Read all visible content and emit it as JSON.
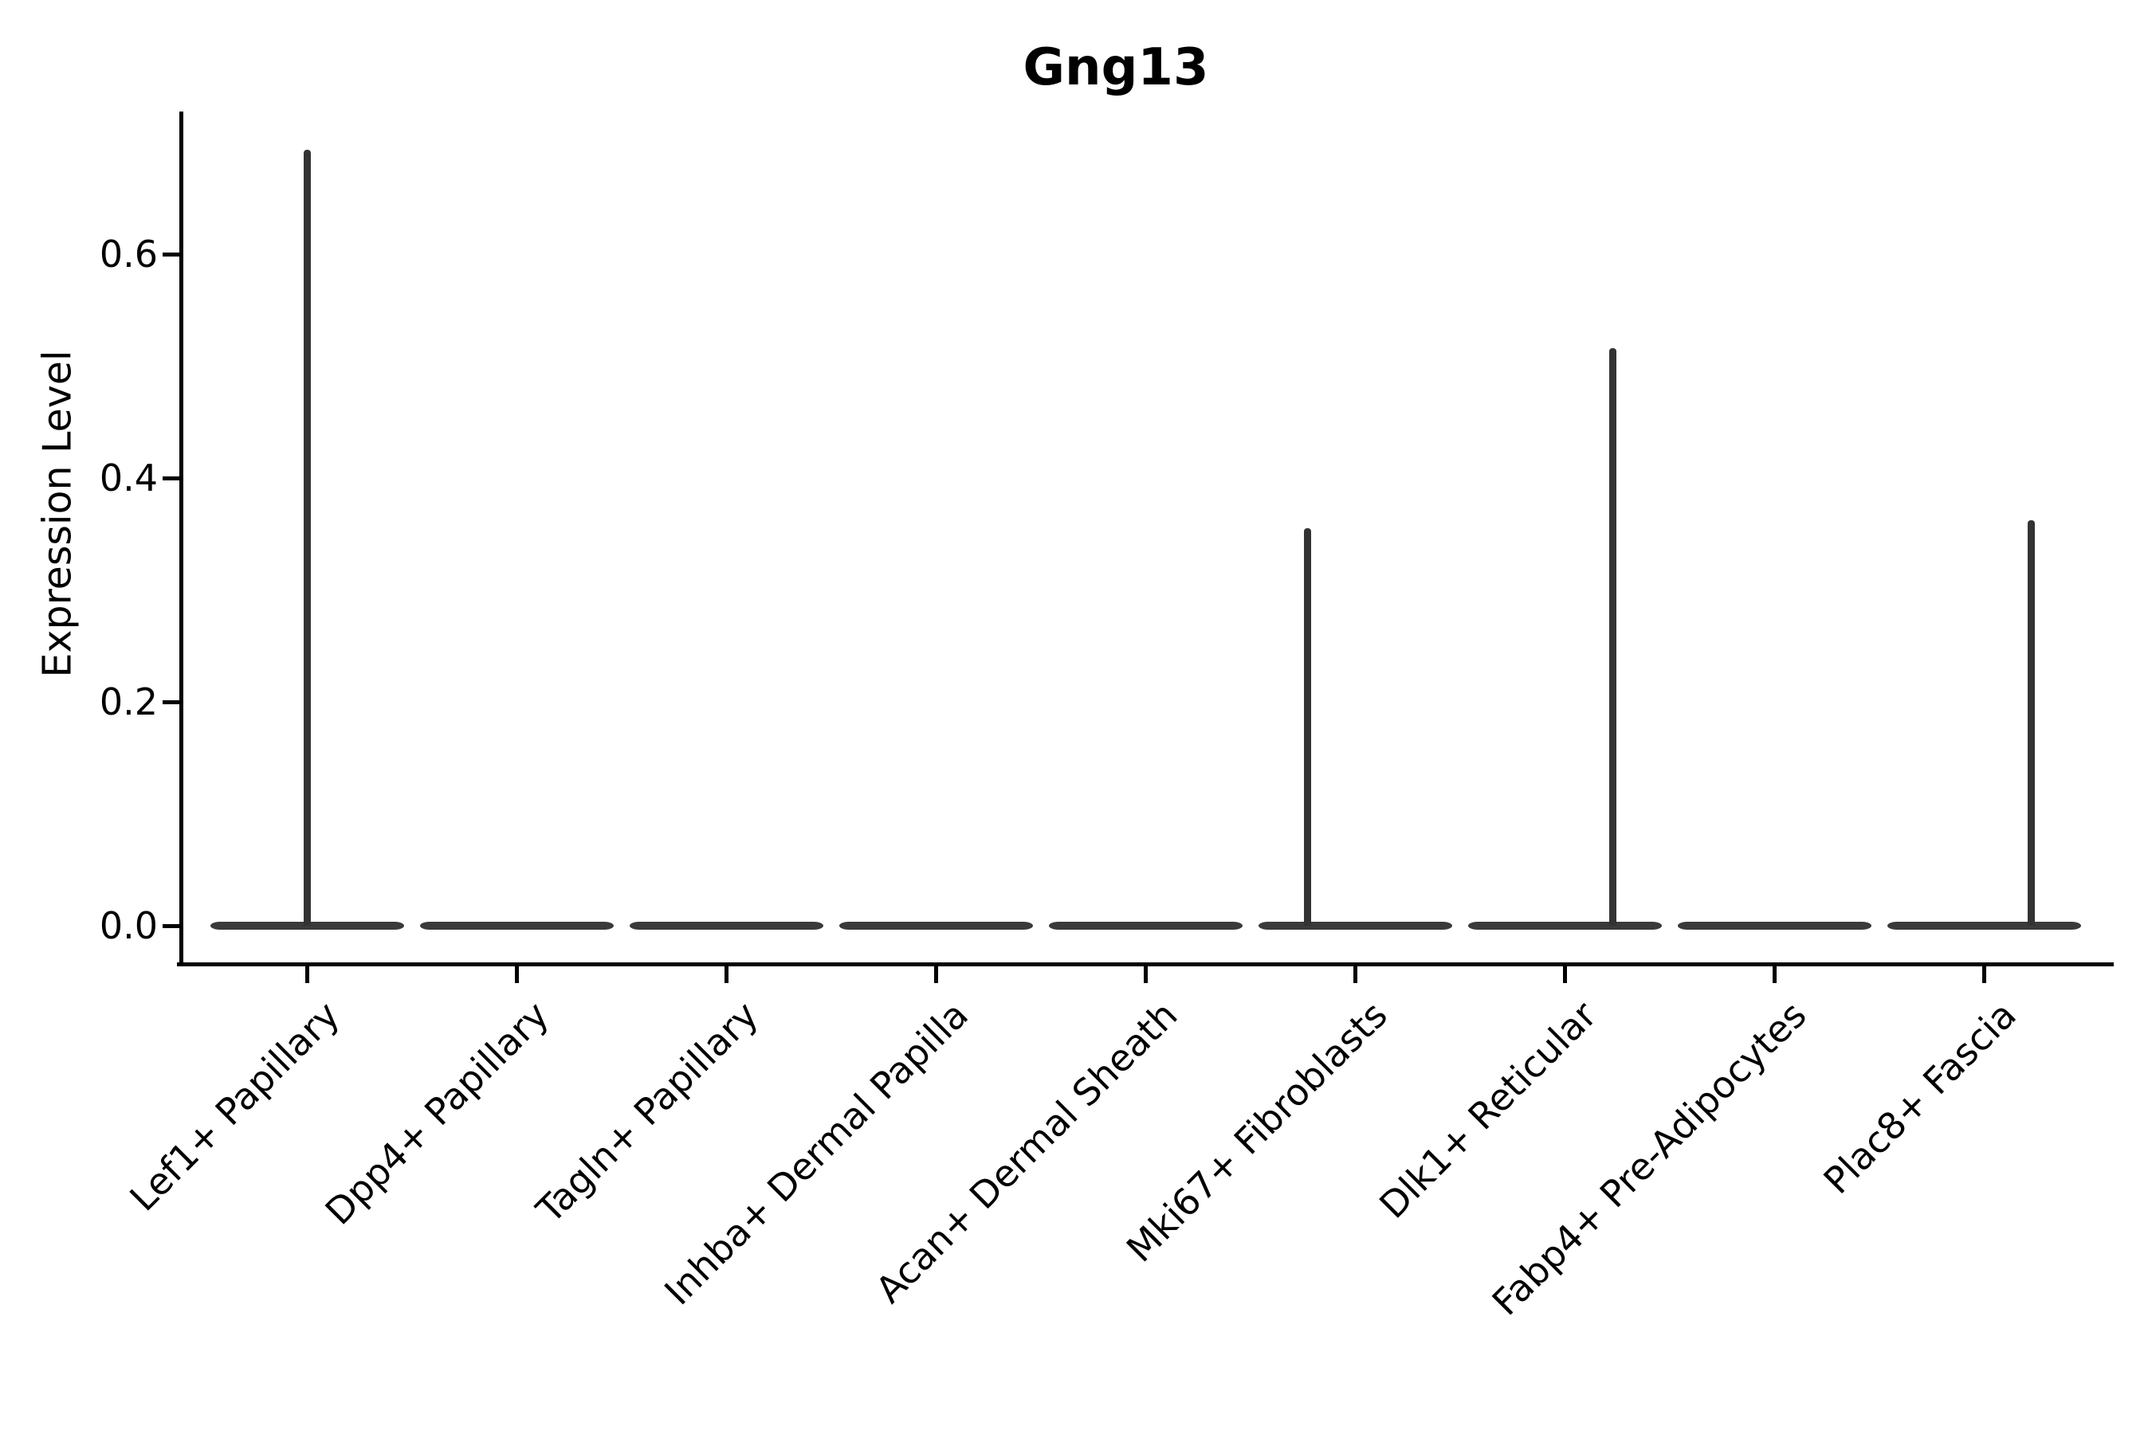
{
  "title": "Gng13",
  "ylabel": "Expression Level",
  "chart_data": {
    "type": "violin",
    "title": "Gng13",
    "xlabel": "",
    "ylabel": "Expression Level",
    "categories": [
      "Lef1+ Papillary",
      "Dpp4+ Papillary",
      "Tagln+ Papillary",
      "Inhba+ Dermal Papilla",
      "Acan+ Dermal Sheath",
      "Mki67+ Fibroblasts",
      "Dlk1+ Reticular",
      "Fabp4+ Pre-Adipocytes",
      "Plac8+ Fascia"
    ],
    "ytick_labels": [
      "0.0",
      "0.2",
      "0.4",
      "0.6"
    ],
    "ytick_values": [
      0.0,
      0.2,
      0.4,
      0.6
    ],
    "ylim": [
      -0.034,
      0.727
    ],
    "grid": false,
    "legend": false,
    "series": [
      {
        "name": "Lef1+ Papillary",
        "median": 0.0,
        "tail_max": 0.693,
        "tail_x_offset": 0.0
      },
      {
        "name": "Dpp4+ Papillary",
        "median": 0.0,
        "tail_max": 0.0,
        "tail_x_offset": 0.0
      },
      {
        "name": "Tagln+ Papillary",
        "median": 0.0,
        "tail_max": 0.0,
        "tail_x_offset": 0.0
      },
      {
        "name": "Inhba+ Dermal Papilla",
        "median": 0.0,
        "tail_max": 0.0,
        "tail_x_offset": 0.0
      },
      {
        "name": "Acan+ Dermal Sheath",
        "median": 0.0,
        "tail_max": 0.0,
        "tail_x_offset": 0.0
      },
      {
        "name": "Mki67+ Fibroblasts",
        "median": 0.0,
        "tail_max": 0.355,
        "tail_x_offset": -0.225
      },
      {
        "name": "Dlk1+ Reticular",
        "median": 0.0,
        "tail_max": 0.516,
        "tail_x_offset": 0.23
      },
      {
        "name": "Fabp4+ Pre-Adipocytes",
        "median": 0.0,
        "tail_max": 0.0,
        "tail_x_offset": 0.0
      },
      {
        "name": "Plac8+ Fascia",
        "median": 0.0,
        "tail_max": 0.362,
        "tail_x_offset": 0.225
      }
    ]
  },
  "colors": {
    "violin_fill": "#3a3a3a",
    "violin_spike": "#333333",
    "axis": "#000000",
    "text": "#000000",
    "background": "#ffffff"
  }
}
